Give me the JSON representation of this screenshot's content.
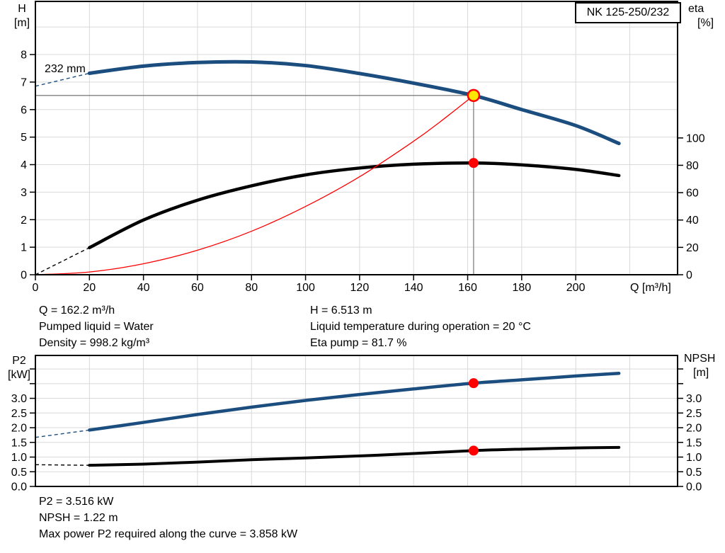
{
  "model_badge": "NK 125-250/232",
  "colors": {
    "curve_blue": "#1b4e7f",
    "curve_black": "#000000",
    "system_red": "#ff0000",
    "duty_yellow": "#ffe600",
    "marker_red": "#ff0000",
    "grid": "#d9d9d9",
    "guide_gray": "#808080",
    "axis": "#000000"
  },
  "info_top": {
    "left": [
      "Q = 162.2 m³/h",
      "Pumped liquid = Water",
      "Density = 998.2 kg/m³"
    ],
    "right": [
      "H = 6.513 m",
      "Liquid temperature during operation = 20 °C",
      "Eta pump = 81.7 %"
    ]
  },
  "info_bottom": [
    "P2 = 3.516 kW",
    "NPSH = 1.22 m",
    "Max power P2 required along the curve = 3.858 kW"
  ],
  "chart_data": [
    {
      "id": "head-efficiency",
      "type": "line",
      "title": "NK 125-250/232",
      "annotation": "232 mm",
      "x": {
        "title": "Q [m³/h]",
        "range": [
          0,
          237.7
        ],
        "ticks": {
          "values": [
            0,
            20,
            40,
            60,
            80,
            100,
            120,
            140,
            160,
            180,
            200
          ],
          "labels": [
            "0",
            "20",
            "40",
            "60",
            "80",
            "100",
            "120",
            "140",
            "160",
            "180",
            "200"
          ]
        },
        "grid": [
          20,
          40,
          60,
          80,
          100,
          120,
          140,
          160,
          180,
          200,
          220
        ]
      },
      "y_left": {
        "title_lines": [
          "H",
          "[m]"
        ],
        "range": [
          0,
          9.93
        ],
        "ticks": {
          "values": [
            0,
            1,
            2,
            3,
            4,
            5,
            6,
            7,
            8
          ],
          "labels": [
            "0",
            "1",
            "2",
            "3",
            "4",
            "5",
            "6",
            "7",
            "8"
          ]
        },
        "grid": [
          1,
          2,
          3,
          4,
          5,
          6,
          7,
          8,
          9
        ]
      },
      "y_right": {
        "title_lines": [
          "eta",
          "[%]"
        ],
        "range": [
          0,
          199.8
        ],
        "ticks": {
          "values": [
            0,
            20,
            40,
            60,
            80,
            100
          ],
          "labels": [
            "0",
            "20",
            "40",
            "60",
            "80",
            "100"
          ]
        }
      },
      "series": [
        {
          "name": "head-curve",
          "axis": "left",
          "color": "#1b4e7f",
          "width": 5,
          "dash_until": 20,
          "points": [
            [
              0,
              6.85
            ],
            [
              20,
              7.32
            ],
            [
              40,
              7.58
            ],
            [
              60,
              7.71
            ],
            [
              80,
              7.73
            ],
            [
              100,
              7.6
            ],
            [
              120,
              7.31
            ],
            [
              140,
              6.96
            ],
            [
              162.2,
              6.513
            ],
            [
              180,
              6.0
            ],
            [
              200,
              5.42
            ],
            [
              216,
              4.77
            ]
          ]
        },
        {
          "name": "efficiency-curve",
          "axis": "right",
          "color": "#000000",
          "width": 4.5,
          "dash_until": 20,
          "points": [
            [
              0,
              0
            ],
            [
              20,
              19.8
            ],
            [
              40,
              40
            ],
            [
              60,
              54.5
            ],
            [
              80,
              65
            ],
            [
              100,
              73
            ],
            [
              120,
              78
            ],
            [
              140,
              80.8
            ],
            [
              162.2,
              81.7
            ],
            [
              180,
              80.3
            ],
            [
              200,
              77
            ],
            [
              216,
              72.5
            ]
          ]
        },
        {
          "name": "system-curve",
          "axis": "left",
          "color": "#ff0000",
          "width": 1.3,
          "points": [
            [
              0,
              0
            ],
            [
              20,
              0.1
            ],
            [
              40,
              0.4
            ],
            [
              60,
              0.89
            ],
            [
              80,
              1.58
            ],
            [
              100,
              2.48
            ],
            [
              120,
              3.56
            ],
            [
              140,
              4.85
            ],
            [
              150,
              5.57
            ],
            [
              162.2,
              6.513
            ]
          ]
        }
      ],
      "duty_point": {
        "q": 162.2,
        "h": 6.513,
        "eta": 81.7
      },
      "markers": [
        {
          "name": "duty-point-marker",
          "q": 162.2,
          "value": 6.513,
          "axis": "left",
          "style": "yellow-ring",
          "guides": true
        },
        {
          "name": "efficiency-point-marker",
          "q": 162.2,
          "value": 81.7,
          "axis": "right",
          "style": "red-dot"
        }
      ]
    },
    {
      "id": "power-npsh",
      "type": "line",
      "title": "",
      "x": {
        "title": "",
        "range": [
          0,
          237.7
        ],
        "ticks": {
          "values": [],
          "labels": []
        },
        "grid": [
          20,
          40,
          60,
          80,
          100,
          120,
          140,
          160,
          180,
          200,
          220
        ]
      },
      "y_left": {
        "title_lines": [
          "P2",
          "[kW]"
        ],
        "range": [
          0,
          4.46
        ],
        "ticks": {
          "values": [
            0,
            0.5,
            1,
            1.5,
            2,
            2.5,
            3
          ],
          "labels": [
            "0.0",
            "0.5",
            "1.0",
            "1.5",
            "2.0",
            "2.5",
            "3.0"
          ]
        },
        "minor_ticks": [
          3.5,
          4
        ],
        "grid": [
          0.5,
          1,
          1.5,
          2,
          2.5,
          3,
          3.5,
          4
        ]
      },
      "y_right": {
        "title_lines": [
          "NPSH",
          "[m]"
        ],
        "range": [
          0,
          4.46
        ],
        "ticks": {
          "values": [
            0,
            0.5,
            1,
            1.5,
            2,
            2.5,
            3
          ],
          "labels": [
            "0.0",
            "0.5",
            "1.0",
            "1.5",
            "2.0",
            "2.5",
            "3.0"
          ]
        },
        "minor_ticks": [
          3.5,
          4
        ]
      },
      "series": [
        {
          "name": "p2-curve",
          "axis": "left",
          "color": "#1b4e7f",
          "width": 4.5,
          "dash_until": 20,
          "points": [
            [
              0,
              1.67
            ],
            [
              20,
              1.92
            ],
            [
              40,
              2.18
            ],
            [
              60,
              2.45
            ],
            [
              80,
              2.7
            ],
            [
              100,
              2.93
            ],
            [
              120,
              3.13
            ],
            [
              140,
              3.32
            ],
            [
              162.2,
              3.516
            ],
            [
              180,
              3.63
            ],
            [
              200,
              3.76
            ],
            [
              216,
              3.85
            ]
          ]
        },
        {
          "name": "npsh-curve",
          "axis": "right",
          "color": "#000000",
          "width": 4,
          "dash_until": 20,
          "points": [
            [
              0,
              0.74
            ],
            [
              20,
              0.72
            ],
            [
              40,
              0.76
            ],
            [
              60,
              0.83
            ],
            [
              80,
              0.91
            ],
            [
              100,
              0.97
            ],
            [
              120,
              1.04
            ],
            [
              140,
              1.12
            ],
            [
              162.2,
              1.22
            ],
            [
              180,
              1.27
            ],
            [
              200,
              1.31
            ],
            [
              216,
              1.33
            ]
          ]
        }
      ],
      "duty_point": {
        "q": 162.2,
        "p2": 3.516,
        "npsh": 1.22,
        "p2_max": 3.858
      },
      "markers": [
        {
          "name": "p2-point-marker",
          "q": 162.2,
          "value": 3.516,
          "axis": "left",
          "style": "red-dot"
        },
        {
          "name": "npsh-point-marker",
          "q": 162.2,
          "value": 1.22,
          "axis": "right",
          "style": "red-dot"
        }
      ]
    }
  ]
}
